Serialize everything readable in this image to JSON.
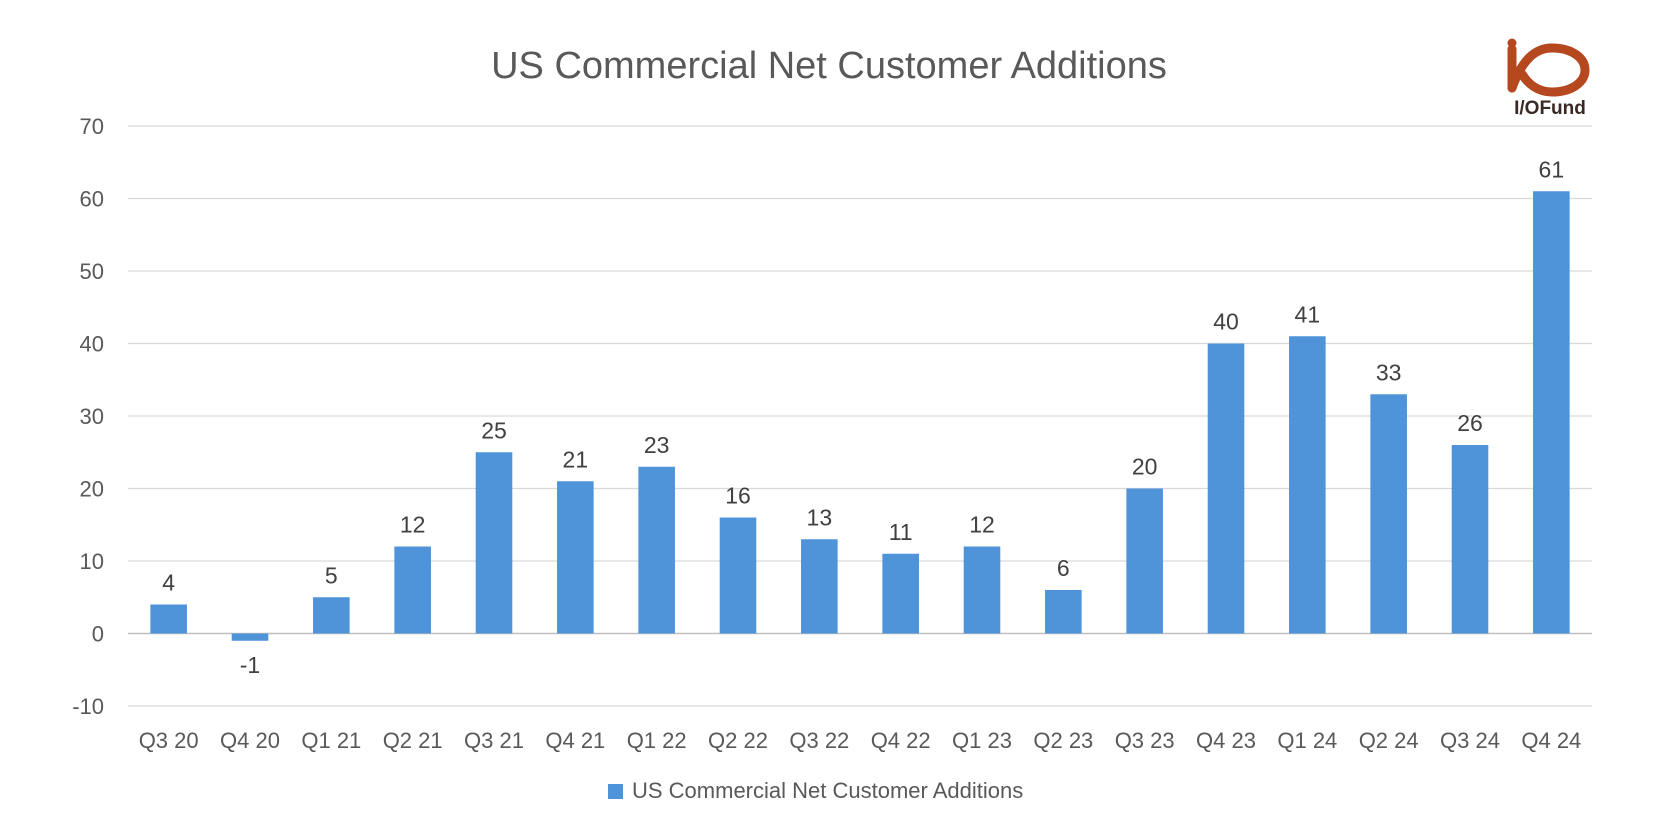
{
  "chart_data": {
    "type": "bar",
    "title": "US Commercial Net Customer Additions",
    "categories": [
      "Q3 20",
      "Q4 20",
      "Q1 21",
      "Q2 21",
      "Q3 21",
      "Q4 21",
      "Q1 22",
      "Q2 22",
      "Q3 22",
      "Q4 22",
      "Q1 23",
      "Q2 23",
      "Q3 23",
      "Q4 23",
      "Q1 24",
      "Q2 24",
      "Q3 24",
      "Q4 24"
    ],
    "series": [
      {
        "name": "US Commercial Net Customer Additions",
        "values": [
          4,
          -1,
          5,
          12,
          25,
          21,
          23,
          16,
          13,
          11,
          12,
          6,
          20,
          40,
          41,
          33,
          26,
          61
        ]
      }
    ],
    "yticks": [
      -10,
      0,
      10,
      20,
      30,
      40,
      50,
      60,
      70
    ],
    "ylim": [
      -10,
      70
    ],
    "grid": true,
    "legend": "bottom",
    "bar_color": "#4f94d9"
  },
  "logo": {
    "text": "I/OFund",
    "icon": "io-fund-logo",
    "color": "#b5481f"
  }
}
